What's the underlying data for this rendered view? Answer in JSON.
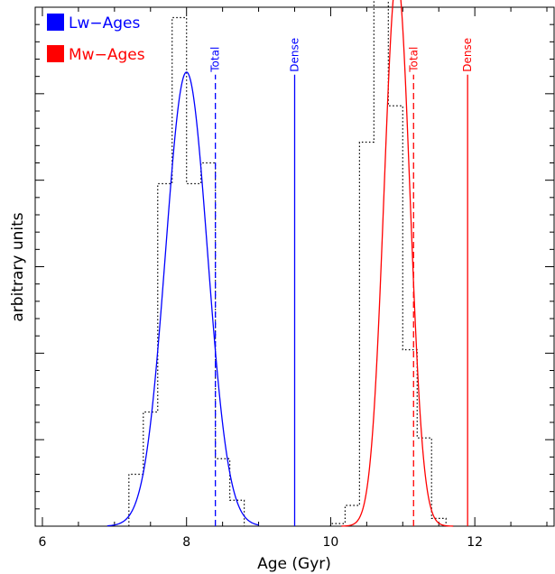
{
  "chart_data": {
    "type": "line",
    "title": "",
    "xlabel": "Age (Gyr)",
    "ylabel": "arbitrary units",
    "xlim": [
      5.9,
      13.1
    ],
    "ylim": [
      0,
      1.0
    ],
    "x_ticks": [
      6,
      8,
      10,
      12
    ],
    "grid": false,
    "legend_position": "top-left",
    "legend": [
      {
        "label": "Lw−Ages",
        "color": "#0000ff"
      },
      {
        "label": "Mw−Ages",
        "color": "#ff0000"
      }
    ],
    "histograms": [
      {
        "color": "#000000",
        "style": "dotted",
        "bin_edges": [
          7.2,
          7.4,
          7.6,
          7.8,
          8.0,
          8.2,
          8.4,
          8.6,
          8.8
        ],
        "values": [
          0.1,
          0.22,
          0.66,
          0.98,
          0.66,
          0.7,
          0.13,
          0.05
        ]
      },
      {
        "color": "#000000",
        "style": "dotted",
        "bin_edges": [
          10.0,
          10.2,
          10.4,
          10.6,
          10.8,
          11.0,
          11.2,
          11.4,
          11.6
        ],
        "values": [
          0.005,
          0.04,
          0.74,
          1.1,
          0.81,
          0.34,
          0.17,
          0.015
        ]
      }
    ],
    "series": [
      {
        "name": "Lw−Ages",
        "color": "#0000ff",
        "curve": "gaussian",
        "mu": 8.0,
        "sigma": 0.29,
        "peak": 0.875,
        "x_range": [
          6.9,
          9.0
        ]
      },
      {
        "name": "Mw−Ages",
        "color": "#ff0000",
        "curve": "gaussian",
        "mu": 10.92,
        "sigma": 0.18,
        "peak": 1.06,
        "x_range": [
          10.15,
          11.7
        ]
      }
    ],
    "vertical_lines": [
      {
        "x": 8.4,
        "label": "Total",
        "color": "#0000ff",
        "style": "dashed",
        "y_top": 0.87
      },
      {
        "x": 9.5,
        "label": "Dense",
        "color": "#0000ff",
        "style": "solid",
        "y_top": 0.87
      },
      {
        "x": 11.15,
        "label": "Total",
        "color": "#ff0000",
        "style": "dashed",
        "y_top": 0.87
      },
      {
        "x": 11.9,
        "label": "Dense",
        "color": "#ff0000",
        "style": "solid",
        "y_top": 0.87
      }
    ]
  }
}
